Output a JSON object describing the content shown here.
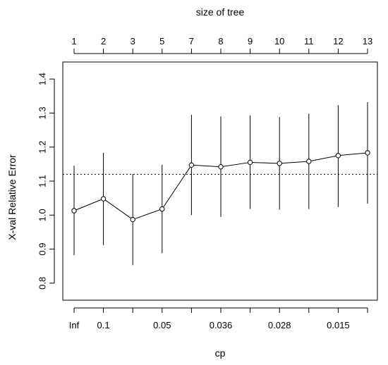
{
  "chart_data": {
    "type": "line",
    "top_axis": {
      "title": "size of tree",
      "labels": [
        "1",
        "2",
        "3",
        "5",
        "7",
        "8",
        "9",
        "10",
        "11",
        "12",
        "13"
      ]
    },
    "bottom_axis": {
      "title": "cp",
      "labels": [
        "Inf",
        "0.1",
        "",
        "0.05",
        "",
        "0.036",
        "",
        "0.028",
        "",
        "0.015",
        ""
      ]
    },
    "ylabel": "X-val Relative Error",
    "ylim": [
      0.75,
      1.45
    ],
    "yticks": [
      0.8,
      0.9,
      1.0,
      1.1,
      1.2,
      1.3,
      1.4
    ],
    "ytick_labels": [
      "0.8",
      "0.9",
      "1.0",
      "1.1",
      "1.2",
      "1.3",
      "1.4"
    ],
    "reference_line": {
      "y": 1.12,
      "style": "dotted"
    },
    "points": [
      {
        "y": 1.013,
        "low": 0.882,
        "high": 1.145
      },
      {
        "y": 1.048,
        "low": 0.912,
        "high": 1.183
      },
      {
        "y": 0.987,
        "low": 0.853,
        "high": 1.121
      },
      {
        "y": 1.018,
        "low": 0.888,
        "high": 1.148
      },
      {
        "y": 1.147,
        "low": 1.0,
        "high": 1.295
      },
      {
        "y": 1.142,
        "low": 0.995,
        "high": 1.29
      },
      {
        "y": 1.155,
        "low": 1.018,
        "high": 1.293
      },
      {
        "y": 1.152,
        "low": 1.016,
        "high": 1.288
      },
      {
        "y": 1.158,
        "low": 1.018,
        "high": 1.298
      },
      {
        "y": 1.175,
        "low": 1.024,
        "high": 1.323
      },
      {
        "y": 1.183,
        "low": 1.034,
        "high": 1.332
      }
    ],
    "grid": false,
    "legend": "none"
  }
}
